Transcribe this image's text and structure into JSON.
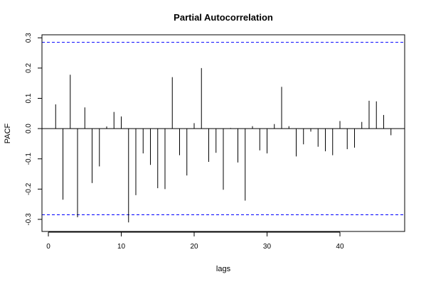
{
  "chart_data": {
    "type": "bar",
    "title": "Partial Autocorrelation",
    "xlabel": "lags",
    "ylabel": "PACF",
    "xlim": [
      -0.88,
      48.88
    ],
    "ylim": [
      -0.34,
      0.31
    ],
    "x_ticks": [
      0,
      10,
      20,
      30,
      40
    ],
    "x_tick_labels": [
      "0",
      "10",
      "20",
      "30",
      "40"
    ],
    "y_ticks": [
      -0.3,
      -0.2,
      -0.1,
      0.0,
      0.1,
      0.2,
      0.3
    ],
    "y_tick_labels": [
      "-0.3",
      "-0.2",
      "-0.1",
      "0.0",
      "0.1",
      "0.2",
      "0.3"
    ],
    "confidence_bounds": [
      0.285,
      -0.285
    ],
    "lags": [
      1,
      2,
      3,
      4,
      5,
      6,
      7,
      8,
      9,
      10,
      11,
      12,
      13,
      14,
      15,
      16,
      17,
      18,
      19,
      20,
      21,
      22,
      23,
      24,
      25,
      26,
      27,
      28,
      29,
      30,
      31,
      32,
      33,
      34,
      35,
      36,
      37,
      38,
      39,
      40,
      41,
      42,
      43,
      44,
      45,
      46,
      47
    ],
    "values": [
      0.08,
      -0.235,
      0.178,
      -0.293,
      0.07,
      -0.18,
      -0.125,
      0.007,
      0.055,
      0.04,
      -0.31,
      -0.22,
      -0.082,
      -0.12,
      -0.197,
      -0.2,
      0.17,
      -0.088,
      -0.155,
      0.018,
      0.2,
      -0.11,
      -0.08,
      -0.202,
      0.002,
      -0.112,
      -0.238,
      0.008,
      -0.072,
      -0.082,
      0.015,
      0.138,
      0.008,
      -0.092,
      -0.052,
      -0.01,
      -0.06,
      -0.075,
      -0.088,
      0.025,
      -0.068,
      -0.063,
      0.022,
      0.092,
      0.09,
      0.045,
      -0.022
    ],
    "colors": {
      "bars": "#000000",
      "bounds": "#0000ff",
      "axis": "#000000"
    },
    "grid": false
  }
}
